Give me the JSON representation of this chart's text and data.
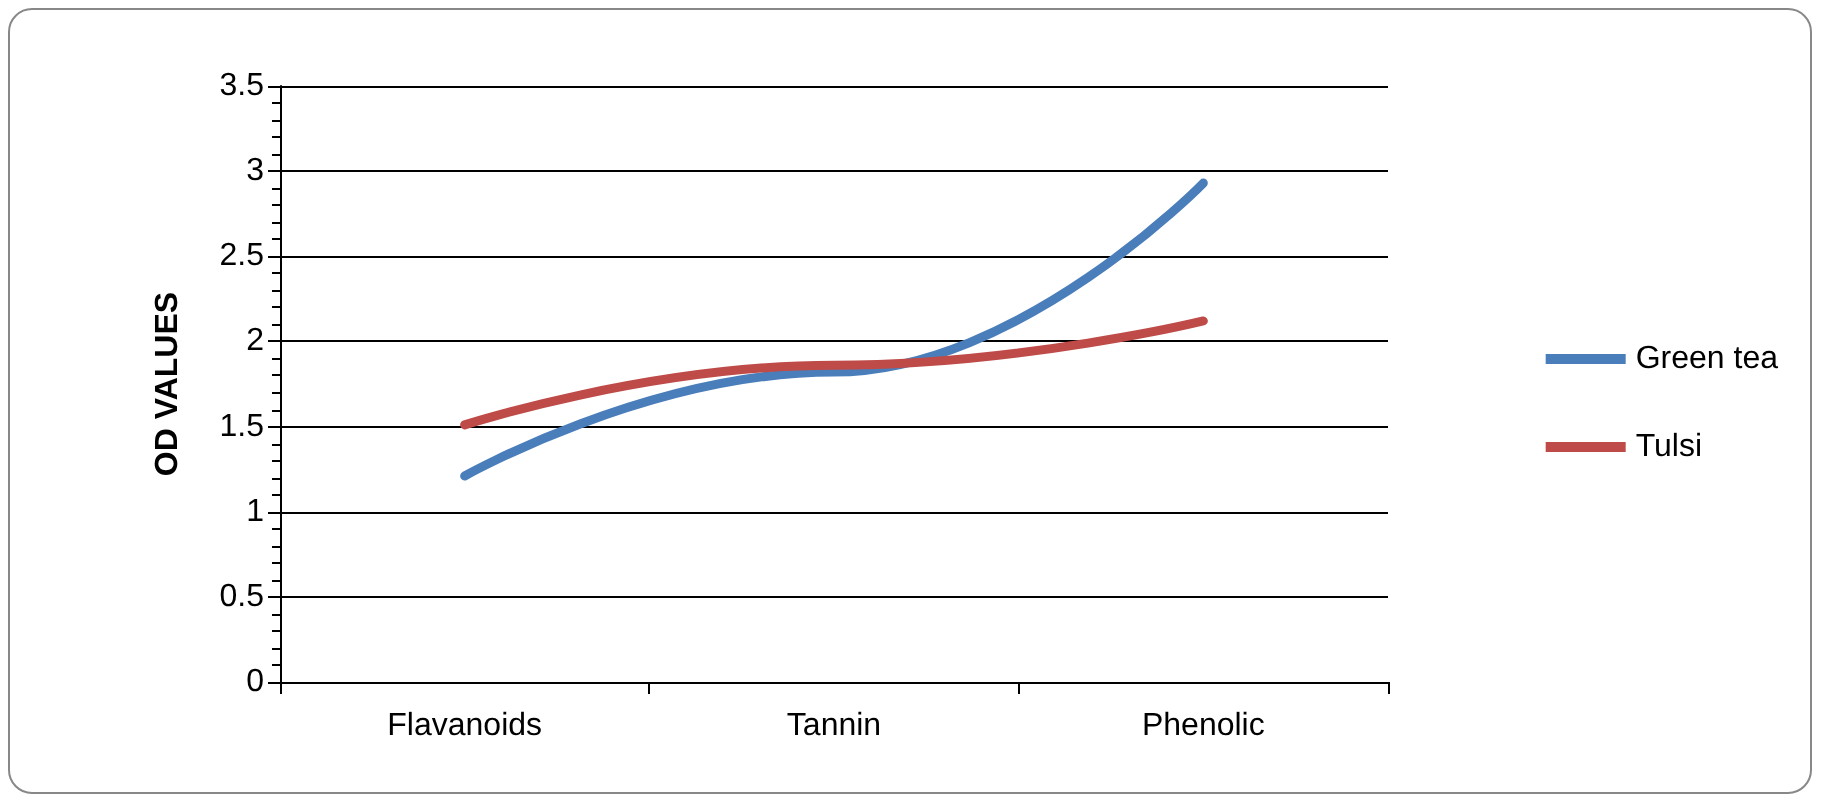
{
  "chart_data": {
    "type": "line",
    "ylabel": "OD VALUES",
    "categories": [
      "Flavanoids",
      "Tannin",
      "Phenolic"
    ],
    "series": [
      {
        "name": "Green tea",
        "color": "#4a7ebb",
        "values": [
          1.21,
          1.82,
          2.93
        ]
      },
      {
        "name": "Tulsi",
        "color": "#be4b48",
        "values": [
          1.51,
          1.86,
          2.12
        ]
      }
    ],
    "ylim": [
      0,
      3.5
    ],
    "yticks": [
      0,
      0.5,
      1,
      1.5,
      2,
      2.5,
      3,
      3.5
    ],
    "grid": "y",
    "legend": "right",
    "marker": "none",
    "line_style": "solid"
  }
}
